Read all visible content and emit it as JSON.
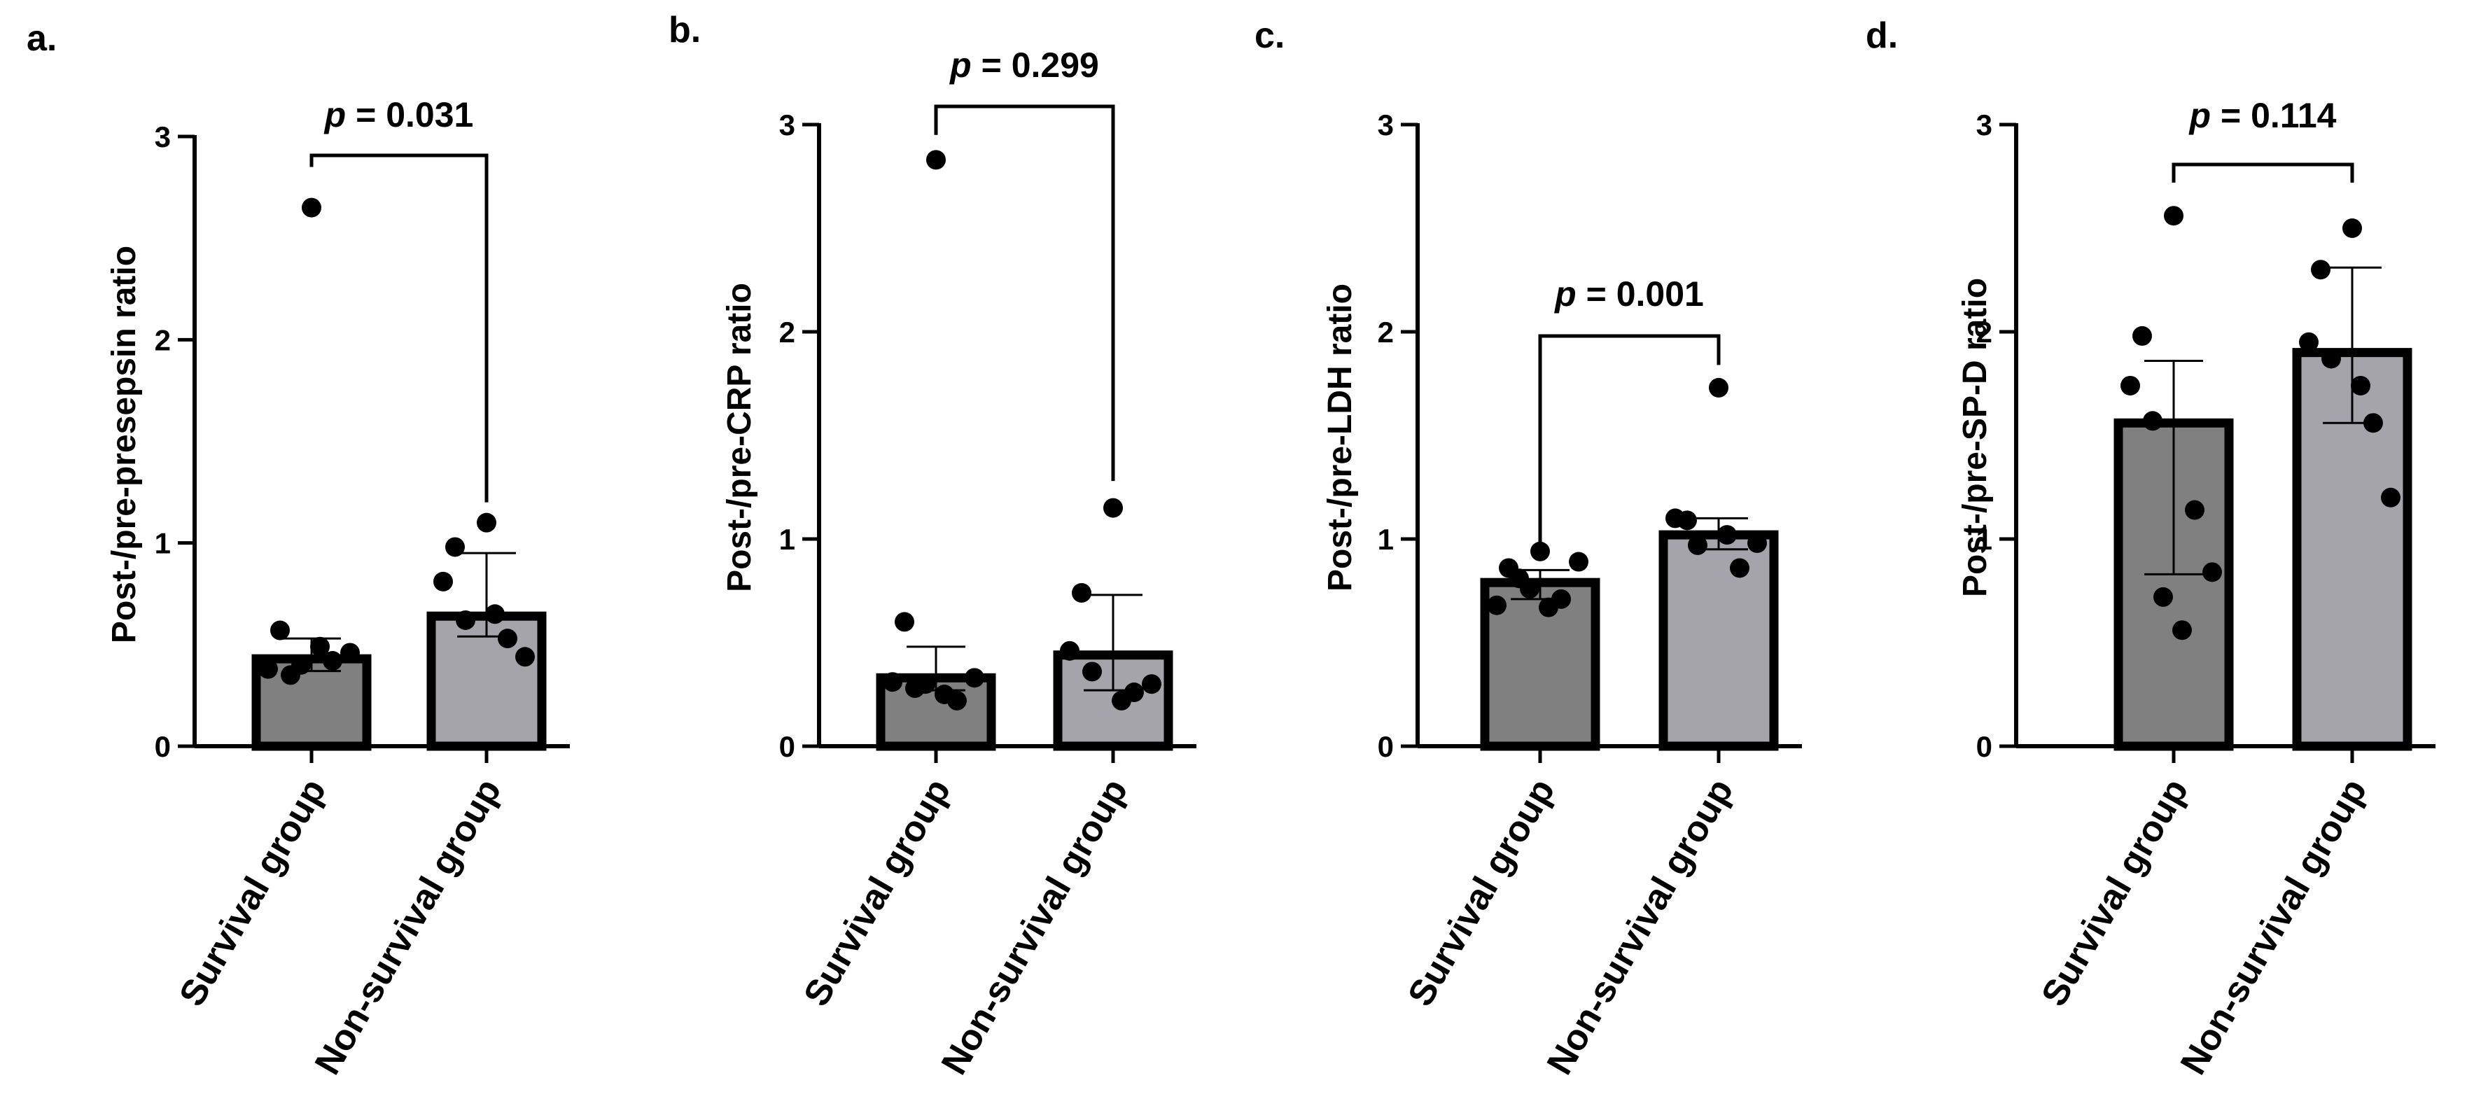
{
  "chart_data": [
    {
      "type": "bar",
      "panel_label": "a.",
      "ylabel": "Post-/pre-presepsin ratio",
      "ylim": [
        0,
        3
      ],
      "yticks": [
        "0",
        "1",
        "2",
        "3"
      ],
      "categories": [
        "Survival group",
        "Non-survival group"
      ],
      "means": [
        0.43,
        0.64
      ],
      "error_low": [
        0.37,
        0.54
      ],
      "error_high": [
        0.53,
        0.95
      ],
      "points": [
        [
          2.65,
          0.57,
          0.38,
          0.35,
          0.42,
          0.46,
          0.49,
          0.4
        ],
        [
          1.1,
          0.98,
          0.81,
          0.62,
          0.53,
          0.44,
          0.65
        ]
      ],
      "pvalue": {
        "prefix": "p",
        "text": " = 0.031"
      },
      "bracket_y": [
        3.0,
        1.2,
        3.0
      ]
    },
    {
      "type": "bar",
      "panel_label": "b.",
      "ylabel": "Post-/pre-CRP ratio",
      "ylim": [
        0,
        3
      ],
      "yticks": [
        "0",
        "1",
        "2",
        "3"
      ],
      "categories": [
        "Survival group",
        "Non-survival group"
      ],
      "means": [
        0.33,
        0.44
      ],
      "error_low": [
        0.27,
        0.27
      ],
      "error_high": [
        0.48,
        0.73
      ],
      "points": [
        [
          2.83,
          0.6,
          0.31,
          0.28,
          0.22,
          0.33,
          0.25,
          0.3
        ],
        [
          1.15,
          0.74,
          0.46,
          0.36,
          0.26,
          0.3,
          0.22
        ]
      ],
      "pvalue": {
        "prefix": "p",
        "text": " = 0.299"
      },
      "bracket_y": [
        3.05,
        1.27,
        3.05
      ]
    },
    {
      "type": "bar",
      "panel_label": "c.",
      "ylabel": "Post-/pre-LDH ratio",
      "ylim": [
        0,
        3
      ],
      "yticks": [
        "0",
        "1",
        "2",
        "3"
      ],
      "categories": [
        "Survival group",
        "Non-survival group"
      ],
      "means": [
        0.79,
        1.02
      ],
      "error_low": [
        0.71,
        0.95
      ],
      "error_high": [
        0.85,
        1.1
      ],
      "points": [
        [
          0.94,
          0.86,
          0.68,
          0.81,
          0.71,
          0.89,
          0.67,
          0.76
        ],
        [
          1.73,
          1.09,
          1.1,
          0.97,
          0.86,
          0.98,
          1.02
        ]
      ],
      "pvalue": {
        "prefix": "p",
        "text": " = 0.001"
      },
      "bracket_y": [
        0.95,
        1.97,
        1.8
      ]
    },
    {
      "type": "bar",
      "panel_label": "d.",
      "ylabel": "Post-/pre-SP-D ratio",
      "ylim": [
        0,
        3
      ],
      "yticks": [
        "0",
        "1",
        "2",
        "3"
      ],
      "categories": [
        "Survival group",
        "Non-survival group"
      ],
      "means": [
        1.56,
        1.9
      ],
      "error_low": [
        0.83,
        1.56
      ],
      "error_high": [
        1.86,
        2.31
      ],
      "points": [
        [
          2.56,
          1.98,
          1.74,
          1.57,
          1.14,
          0.84,
          0.56,
          0.72
        ],
        [
          2.5,
          2.3,
          1.95,
          1.87,
          1.56,
          1.2,
          1.74
        ]
      ],
      "pvalue": {
        "prefix": "p",
        "text": " = 0.114"
      },
      "bracket_y": [
        2.6,
        2.81,
        2.6
      ]
    }
  ]
}
